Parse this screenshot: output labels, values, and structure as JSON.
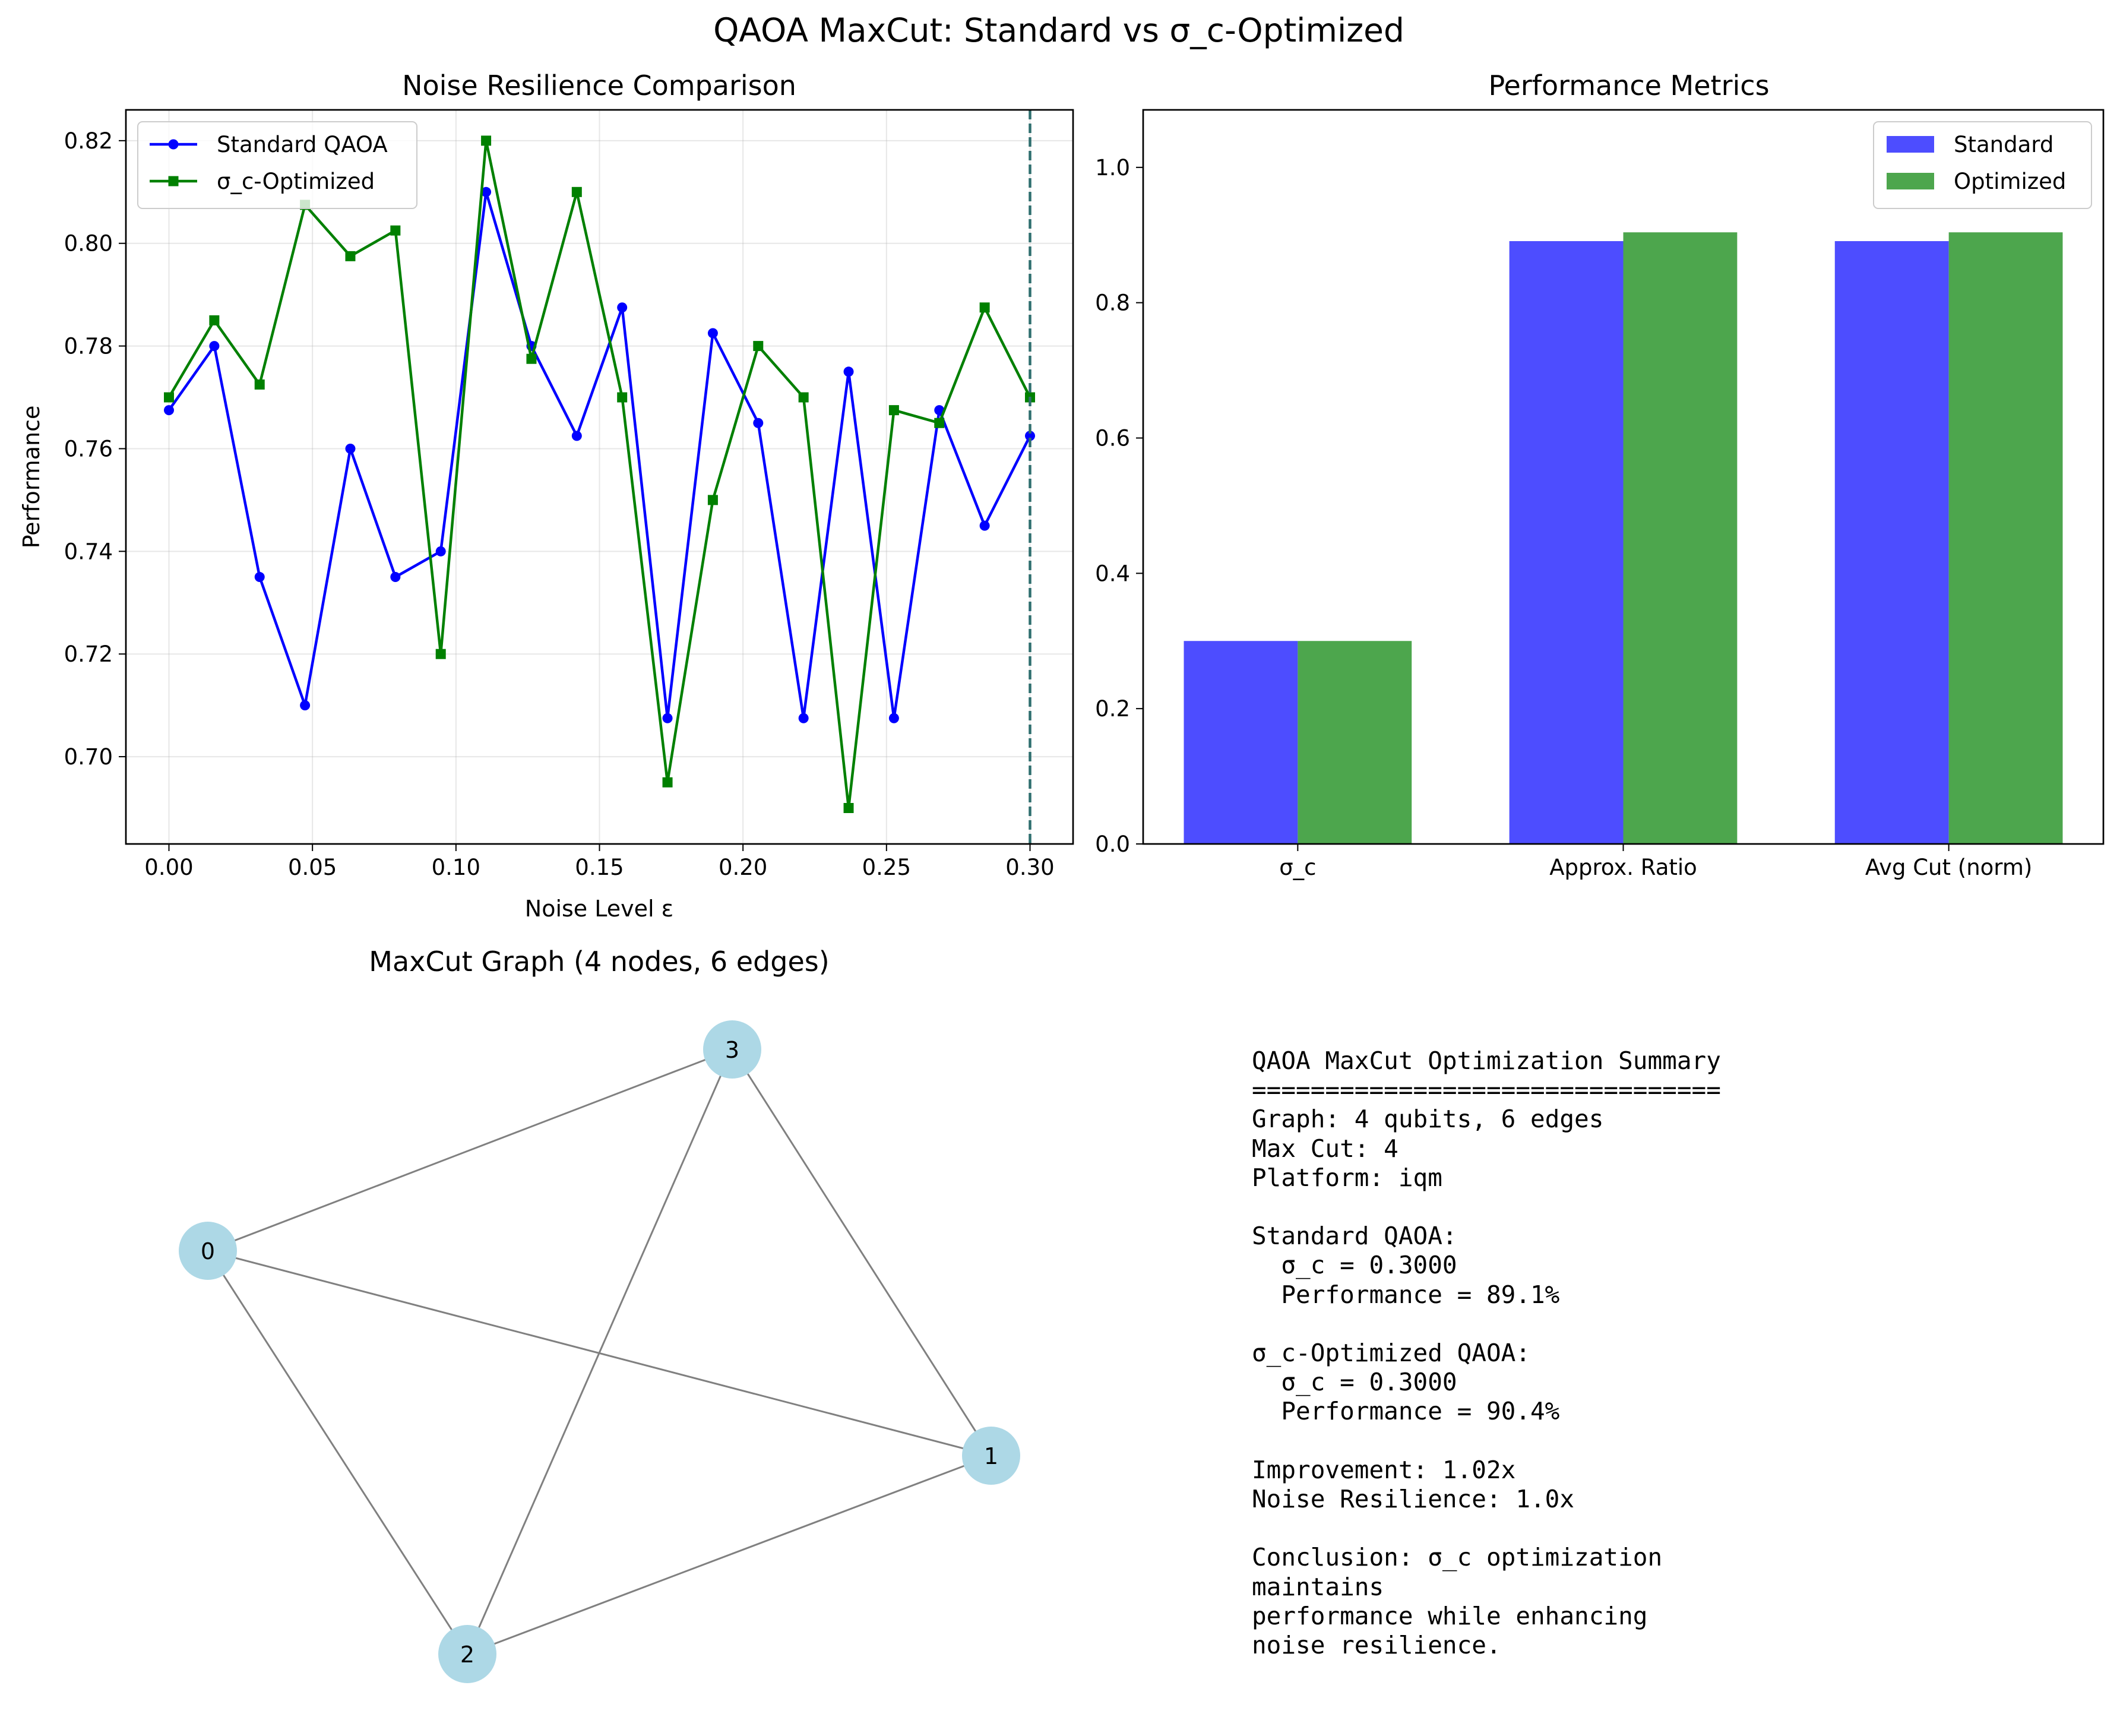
{
  "suptitle": "QAOA MaxCut: Standard vs σ_c-Optimized",
  "colors": {
    "standard_line": "#0000ff",
    "optimized_line": "#008000",
    "standard_bar": "#4d4dff",
    "optimized_bar": "#4da64d",
    "node": "#add8e6",
    "edge": "#808080",
    "vline": "#2f6f6f"
  },
  "chart_data": [
    {
      "type": "line",
      "title": "Noise Resilience Comparison",
      "xlabel": "Noise Level ε",
      "ylabel": "Performance",
      "xlim": [
        -0.015,
        0.315
      ],
      "ylim": [
        0.683,
        0.826
      ],
      "xticks": [
        0.0,
        0.05,
        0.1,
        0.15,
        0.2,
        0.25,
        0.3
      ],
      "xtick_labels": [
        "0.00",
        "0.05",
        "0.10",
        "0.15",
        "0.20",
        "0.25",
        "0.30"
      ],
      "yticks": [
        0.7,
        0.72,
        0.74,
        0.76,
        0.78,
        0.8,
        0.82
      ],
      "ytick_labels": [
        "0.70",
        "0.72",
        "0.74",
        "0.76",
        "0.78",
        "0.80",
        "0.82"
      ],
      "grid": true,
      "legend": "top-left",
      "vline_x": 0.3,
      "x": [
        0.0,
        0.0158,
        0.0316,
        0.0474,
        0.0632,
        0.0789,
        0.0947,
        0.1105,
        0.1263,
        0.1421,
        0.1579,
        0.1737,
        0.1895,
        0.2053,
        0.2211,
        0.2368,
        0.2526,
        0.2684,
        0.2842,
        0.3
      ],
      "series": [
        {
          "name": "Standard QAOA",
          "marker": "circle",
          "values": [
            0.7675,
            0.78,
            0.735,
            0.71,
            0.76,
            0.735,
            0.74,
            0.81,
            0.78,
            0.7625,
            0.7875,
            0.7075,
            0.7825,
            0.765,
            0.7075,
            0.775,
            0.7075,
            0.7675,
            0.745,
            0.7625
          ]
        },
        {
          "name": "σ_c-Optimized",
          "marker": "square",
          "values": [
            0.77,
            0.785,
            0.7725,
            0.8075,
            0.7975,
            0.8025,
            0.72,
            0.82,
            0.7775,
            0.81,
            0.77,
            0.695,
            0.75,
            0.78,
            0.77,
            0.69,
            0.7675,
            0.765,
            0.7875,
            0.77
          ]
        }
      ]
    },
    {
      "type": "bar",
      "title": "Performance Metrics",
      "categories": [
        "σ_c",
        "Approx. Ratio",
        "Avg Cut (norm)"
      ],
      "ylim": [
        0,
        1.085
      ],
      "yticks": [
        0.0,
        0.2,
        0.4,
        0.6,
        0.8,
        1.0
      ],
      "ytick_labels": [
        "0.0",
        "0.2",
        "0.4",
        "0.6",
        "0.8",
        "1.0"
      ],
      "legend": "top-right",
      "series": [
        {
          "name": "Standard",
          "values": [
            0.3,
            0.891,
            0.891
          ]
        },
        {
          "name": "Optimized",
          "values": [
            0.3,
            0.904,
            0.904
          ]
        }
      ]
    }
  ],
  "graph": {
    "title": "MaxCut Graph (4 nodes, 6 edges)",
    "nodes": [
      "0",
      "1",
      "2",
      "3"
    ],
    "edges": [
      [
        "0",
        "3"
      ],
      [
        "0",
        "1"
      ],
      [
        "0",
        "2"
      ],
      [
        "3",
        "2"
      ],
      [
        "3",
        "1"
      ],
      [
        "2",
        "1"
      ]
    ]
  },
  "summary_text": "QAOA MaxCut Optimization Summary\n================================\nGraph: 4 qubits, 6 edges\nMax Cut: 4\nPlatform: iqm\n\nStandard QAOA:\n  σ_c = 0.3000\n  Performance = 89.1%\n\nσ_c-Optimized QAOA:\n  σ_c = 0.3000\n  Performance = 90.4%\n\nImprovement: 1.02x\nNoise Resilience: 1.0x\n\nConclusion: σ_c optimization\nmaintains\nperformance while enhancing\nnoise resilience."
}
